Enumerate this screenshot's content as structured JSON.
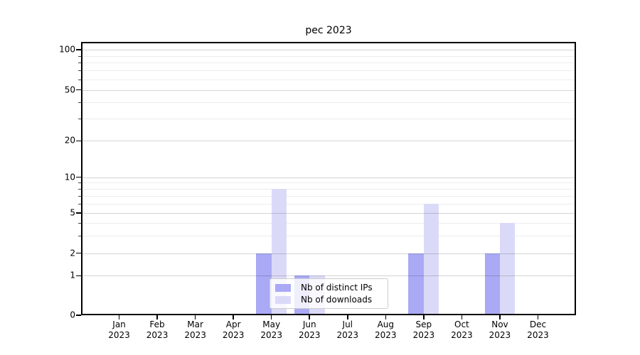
{
  "chart_data": {
    "type": "bar",
    "title": "pec 2023",
    "yscale": "symlog",
    "grid": true,
    "legend_position": "lower center (inside axes)",
    "ylim": [
      0,
      114
    ],
    "y_ticks": [
      0,
      1,
      2,
      5,
      10,
      20,
      50,
      100
    ],
    "y_minor_ticks": [
      3,
      4,
      6,
      7,
      8,
      9,
      30,
      40,
      60,
      70,
      80,
      90
    ],
    "categories": [
      "Jan\n2023",
      "Feb\n2023",
      "Mar\n2023",
      "Apr\n2023",
      "May\n2023",
      "Jun\n2023",
      "Jul\n2023",
      "Aug\n2023",
      "Sep\n2023",
      "Oct\n2023",
      "Nov\n2023",
      "Dec\n2023"
    ],
    "series": [
      {
        "name": "Nb of distinct IPs",
        "color": "#a9a9f5",
        "values": [
          0,
          0,
          0,
          0,
          2,
          1,
          0,
          0,
          2,
          0,
          2,
          0
        ]
      },
      {
        "name": "Nb of downloads",
        "color": "#dadaf8",
        "values": [
          0,
          0,
          0,
          0,
          8,
          1,
          0,
          0,
          6,
          0,
          4,
          0
        ]
      }
    ]
  }
}
